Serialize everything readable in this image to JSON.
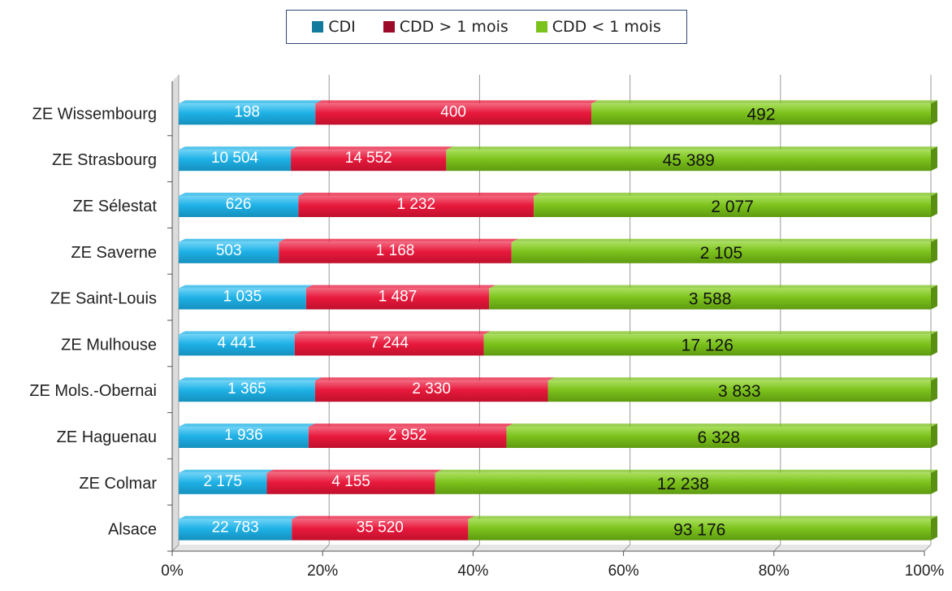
{
  "chart_data": {
    "type": "bar",
    "orientation": "horizontal",
    "stacked": "percent",
    "categories": [
      "ZE Wissembourg",
      "ZE Strasbourg",
      "ZE Sélestat",
      "ZE Saverne",
      "ZE Saint-Louis",
      "ZE Mulhouse",
      "ZE Mols.-Obernai",
      "ZE Haguenau",
      "ZE Colmar",
      "Alsace"
    ],
    "series": [
      {
        "name": "CDI",
        "color": "#1eb1e6",
        "values": [
          198,
          10504,
          626,
          503,
          1035,
          4441,
          1365,
          1936,
          2175,
          22783
        ],
        "labels": [
          "198",
          "10 504",
          "626",
          "503",
          "1 035",
          "4 441",
          "1 365",
          "1 936",
          "2 175",
          "22 783"
        ]
      },
      {
        "name": "CDD > 1 mois",
        "color": "#e8193c",
        "values": [
          400,
          14552,
          1232,
          1168,
          1487,
          7244,
          2330,
          2952,
          4155,
          35520
        ],
        "labels": [
          "400",
          "14 552",
          "1 232",
          "1 168",
          "1 487",
          "7 244",
          "2 330",
          "2 952",
          "4 155",
          "35 520"
        ]
      },
      {
        "name": "CDD < 1 mois",
        "color": "#7cc21c",
        "values": [
          492,
          45389,
          2077,
          2105,
          3588,
          17126,
          3833,
          6328,
          12238,
          93176
        ],
        "labels": [
          "492",
          "45 389",
          "2 077",
          "2 105",
          "3 588",
          "17 126",
          "3 833",
          "6 328",
          "12 238",
          "93 176"
        ]
      }
    ],
    "xlim": [
      0,
      100
    ],
    "xticks": [
      "0%",
      "20%",
      "40%",
      "60%",
      "80%",
      "100%"
    ],
    "grid": true,
    "legend_position": "top"
  },
  "legend": {
    "items": [
      {
        "label": "CDI",
        "color": "#137a9e"
      },
      {
        "label": "CDD > 1 mois",
        "color": "#9b0a28"
      },
      {
        "label": "CDD < 1 mois",
        "color": "#7cc21c"
      }
    ]
  }
}
